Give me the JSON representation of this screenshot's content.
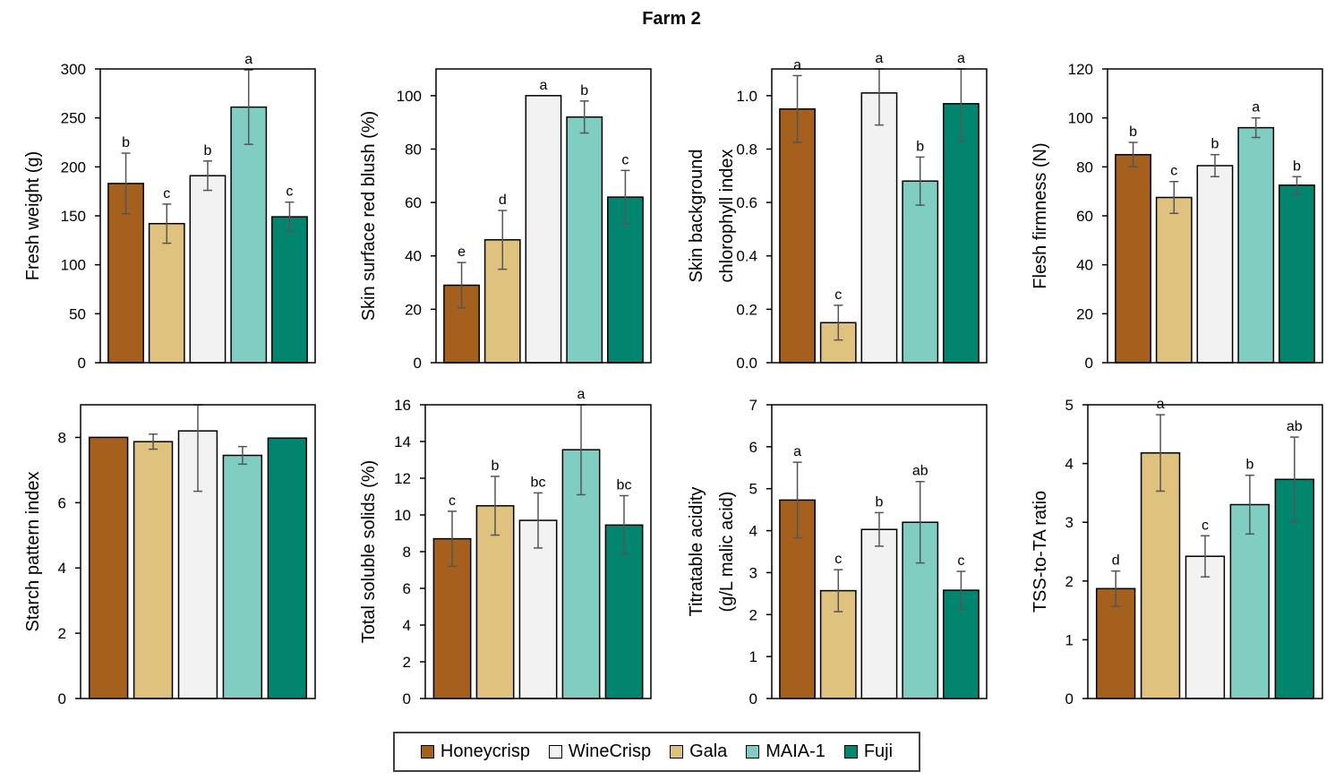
{
  "title": "Farm 2",
  "cultivars": [
    "Honeycrisp",
    "Gala",
    "WineCrisp",
    "MAIA-1",
    "Fuji"
  ],
  "colors": {
    "Honeycrisp": "#A5601E",
    "Gala": "#DFC27D",
    "WineCrisp": "#F2F2F2",
    "MAIA-1": "#80CDC1",
    "Fuji": "#01856F"
  },
  "legend": {
    "items": [
      {
        "label": "Honeycrisp",
        "color": "#A5601E"
      },
      {
        "label": "WineCrisp",
        "color": "#F2F2F2"
      },
      {
        "label": "Gala",
        "color": "#DFC27D"
      },
      {
        "label": "MAIA-1",
        "color": "#80CDC1"
      },
      {
        "label": "Fuji",
        "color": "#01856F"
      }
    ]
  },
  "chart_data": [
    {
      "type": "bar",
      "title": "",
      "xlabel": "",
      "ylabel": "Fresh weight (g)",
      "ylabel_lines": [
        "Fresh weight (g)"
      ],
      "categories": [
        "Honeycrisp",
        "Gala",
        "WineCrisp",
        "MAIA-1",
        "Fuji"
      ],
      "values": [
        183,
        142,
        191,
        261,
        149
      ],
      "errors": [
        31,
        20,
        15,
        38,
        15
      ],
      "letters": [
        "b",
        "c",
        "b",
        "a",
        "c"
      ],
      "ylim": [
        0,
        300
      ],
      "yticks": [
        0,
        50,
        100,
        150,
        200,
        250,
        300
      ],
      "ytick_labels": [
        "0",
        "50",
        "100",
        "150",
        "200",
        "250",
        "300"
      ],
      "grid": false
    },
    {
      "type": "bar",
      "title": "",
      "xlabel": "",
      "ylabel": "Skin surface red blush (%)",
      "ylabel_lines": [
        "Skin surface red blush (%)"
      ],
      "categories": [
        "Honeycrisp",
        "Gala",
        "WineCrisp",
        "MAIA-1",
        "Fuji"
      ],
      "values": [
        29,
        46,
        100,
        92,
        62
      ],
      "errors": [
        8.5,
        11,
        0,
        6,
        10
      ],
      "letters": [
        "e",
        "d",
        "a",
        "b",
        "c"
      ],
      "ylim": [
        0,
        110
      ],
      "yticks": [
        0,
        20,
        40,
        60,
        80,
        100
      ],
      "ytick_labels": [
        "0",
        "20",
        "40",
        "60",
        "80",
        "100"
      ],
      "grid": false
    },
    {
      "type": "bar",
      "title": "",
      "xlabel": "",
      "ylabel": "Skin background chlorophyll index",
      "ylabel_lines": [
        "Skin background",
        "chlorophyll index"
      ],
      "categories": [
        "Honeycrisp",
        "Gala",
        "WineCrisp",
        "MAIA-1",
        "Fuji"
      ],
      "values": [
        0.95,
        0.15,
        1.01,
        0.68,
        0.97
      ],
      "errors": [
        0.125,
        0.065,
        0.12,
        0.09,
        0.14
      ],
      "letters": [
        "a",
        "c",
        "a",
        "b",
        "a"
      ],
      "ylim": [
        0,
        1.1
      ],
      "yticks": [
        0,
        0.2,
        0.4,
        0.6,
        0.8,
        1.0
      ],
      "ytick_labels": [
        "0.0",
        "0.2",
        "0.4",
        "0.6",
        "0.8",
        "1.0"
      ],
      "grid": false
    },
    {
      "type": "bar",
      "title": "",
      "xlabel": "",
      "ylabel": "Flesh firmness (N)",
      "ylabel_lines": [
        "Flesh firmness (N)"
      ],
      "categories": [
        "Honeycrisp",
        "Gala",
        "WineCrisp",
        "MAIA-1",
        "Fuji"
      ],
      "values": [
        85,
        67.5,
        80.5,
        96,
        72.5
      ],
      "errors": [
        5,
        6.5,
        4.5,
        4,
        3.5
      ],
      "letters": [
        "b",
        "c",
        "b",
        "a",
        "b"
      ],
      "ylim": [
        0,
        120
      ],
      "yticks": [
        0,
        20,
        40,
        60,
        80,
        100,
        120
      ],
      "ytick_labels": [
        "0",
        "20",
        "40",
        "60",
        "80",
        "100",
        "120"
      ],
      "grid": false
    },
    {
      "type": "bar",
      "title": "",
      "xlabel": "",
      "ylabel": "Starch pattern index",
      "ylabel_lines": [
        "Starch pattern index"
      ],
      "categories": [
        "Honeycrisp",
        "Gala",
        "WineCrisp",
        "MAIA-1",
        "Fuji"
      ],
      "values": [
        8.0,
        7.87,
        8.2,
        7.45,
        7.98
      ],
      "errors": [
        0,
        0.23,
        1.85,
        0.27,
        0
      ],
      "letters": [
        "",
        "",
        "",
        "",
        ""
      ],
      "ylim": [
        0,
        9
      ],
      "yticks": [
        0,
        2,
        4,
        6,
        8
      ],
      "ytick_labels": [
        "0",
        "2",
        "4",
        "6",
        "8"
      ],
      "grid": false
    },
    {
      "type": "bar",
      "title": "",
      "xlabel": "",
      "ylabel": "Total soluble solids (%)",
      "ylabel_lines": [
        "Total soluble solids (%)"
      ],
      "categories": [
        "Honeycrisp",
        "Gala",
        "WineCrisp",
        "MAIA-1",
        "Fuji"
      ],
      "values": [
        8.7,
        10.5,
        9.7,
        13.55,
        9.45
      ],
      "errors": [
        1.5,
        1.6,
        1.5,
        2.45,
        1.6
      ],
      "letters": [
        "c",
        "b",
        "bc",
        "a",
        "bc"
      ],
      "ylim": [
        0,
        16
      ],
      "yticks": [
        0,
        2,
        4,
        6,
        8,
        10,
        12,
        14,
        16
      ],
      "ytick_labels": [
        "0",
        "2",
        "4",
        "6",
        "8",
        "10",
        "12",
        "14",
        "16"
      ],
      "grid": false
    },
    {
      "type": "bar",
      "title": "",
      "xlabel": "",
      "ylabel": "Titratable acidity (g/L malic acid)",
      "ylabel_lines": [
        "Titratable acidity",
        "(g/L malic acid)"
      ],
      "categories": [
        "Honeycrisp",
        "Gala",
        "WineCrisp",
        "MAIA-1",
        "Fuji"
      ],
      "values": [
        4.73,
        2.57,
        4.03,
        4.2,
        2.58
      ],
      "errors": [
        0.9,
        0.5,
        0.4,
        0.97,
        0.45
      ],
      "letters": [
        "a",
        "c",
        "b",
        "ab",
        "c"
      ],
      "ylim": [
        0,
        7
      ],
      "yticks": [
        0,
        1,
        2,
        3,
        4,
        5,
        6,
        7
      ],
      "ytick_labels": [
        "0",
        "1",
        "2",
        "3",
        "4",
        "5",
        "6",
        "7"
      ],
      "grid": false
    },
    {
      "type": "bar",
      "title": "",
      "xlabel": "",
      "ylabel": "TSS-to-TA ratio",
      "ylabel_lines": [
        "TSS-to-TA ratio"
      ],
      "categories": [
        "Honeycrisp",
        "Gala",
        "WineCrisp",
        "MAIA-1",
        "Fuji"
      ],
      "values": [
        1.87,
        4.18,
        2.42,
        3.3,
        3.73
      ],
      "errors": [
        0.3,
        0.65,
        0.35,
        0.5,
        0.72
      ],
      "letters": [
        "d",
        "a",
        "c",
        "b",
        "ab"
      ],
      "ylim": [
        0,
        5
      ],
      "yticks": [
        0,
        1,
        2,
        3,
        4,
        5
      ],
      "ytick_labels": [
        "0",
        "1",
        "2",
        "3",
        "4",
        "5"
      ],
      "grid": false
    }
  ]
}
